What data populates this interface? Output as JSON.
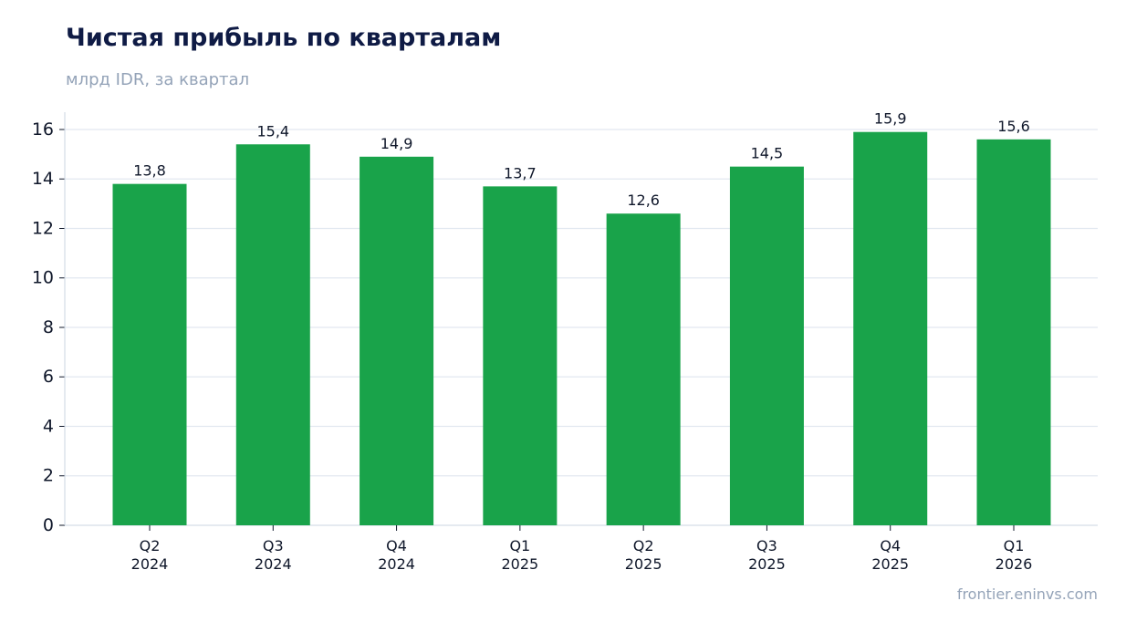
{
  "title": "Чистая прибыль по кварталам",
  "subtitle": "млрд IDR, за квартал",
  "source": "frontier.eninvs.com",
  "colors": {
    "bar": "#19a34a",
    "grid": "#e2e8f0",
    "axis": "#cbd5e1",
    "text": "#0f172a"
  },
  "chart_data": {
    "type": "bar",
    "categories": [
      [
        "Q2",
        "2024"
      ],
      [
        "Q3",
        "2024"
      ],
      [
        "Q4",
        "2024"
      ],
      [
        "Q1",
        "2025"
      ],
      [
        "Q2",
        "2025"
      ],
      [
        "Q3",
        "2025"
      ],
      [
        "Q4",
        "2025"
      ],
      [
        "Q1",
        "2026"
      ]
    ],
    "values": [
      13.8,
      15.4,
      14.9,
      13.7,
      12.6,
      14.5,
      15.9,
      15.6
    ],
    "value_labels": [
      "13,8",
      "15,4",
      "14,9",
      "13,7",
      "12,6",
      "14,5",
      "15,9",
      "15,6"
    ],
    "yticks": [
      0,
      2,
      4,
      6,
      8,
      10,
      12,
      14,
      16
    ],
    "ylim": [
      0,
      16.7
    ],
    "grid": true,
    "legend": "none"
  }
}
